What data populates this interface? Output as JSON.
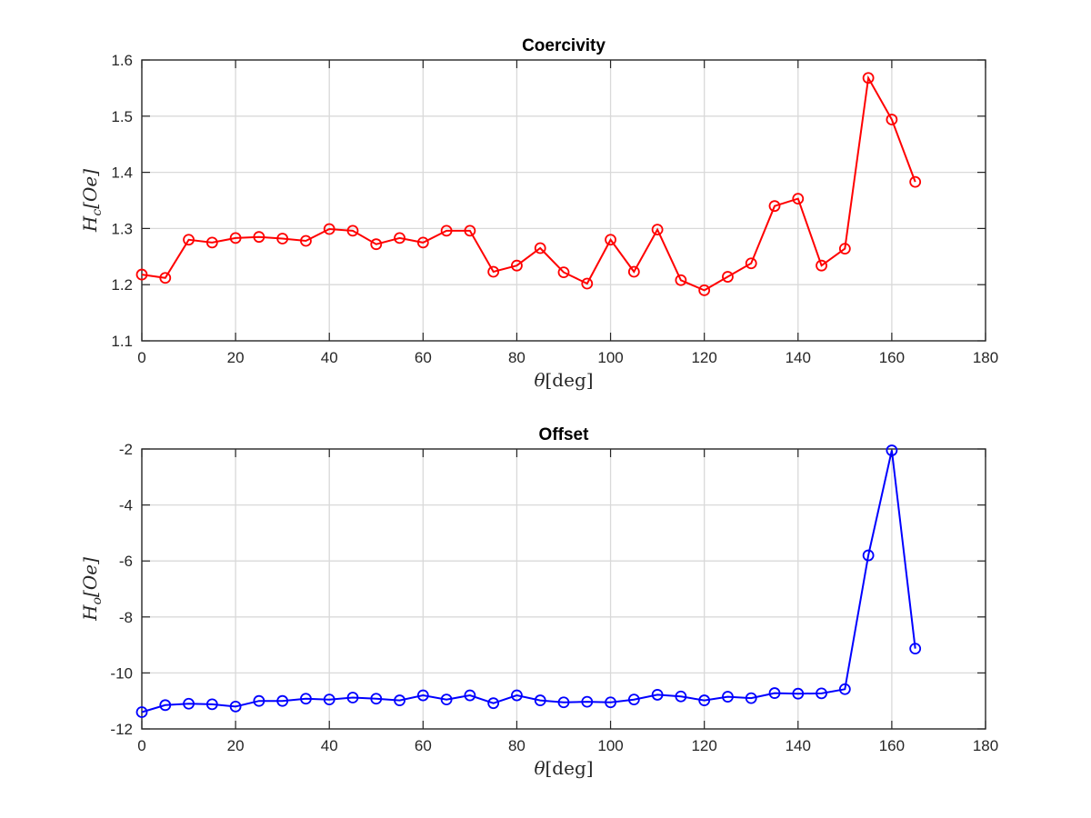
{
  "chart_data": [
    {
      "type": "line",
      "title": "Coercivity",
      "xlabel_symbol": "θ",
      "xlabel_unit": "[deg]",
      "ylabel_main": "H",
      "ylabel_sub": "c",
      "ylabel_unit": "[Oe]",
      "xlim": [
        0,
        180
      ],
      "ylim": [
        1.1,
        1.6
      ],
      "xticks": [
        0,
        20,
        40,
        60,
        80,
        100,
        120,
        140,
        160,
        180
      ],
      "yticks": [
        1.1,
        1.2,
        1.3,
        1.4,
        1.5,
        1.6
      ],
      "ytick_labels": [
        "1.1",
        "1.2",
        "1.3",
        "1.4",
        "1.5",
        "1.6"
      ],
      "grid": true,
      "series": [
        {
          "color": "#ff0000",
          "marker": "circle",
          "x": [
            0,
            5,
            10,
            15,
            20,
            25,
            30,
            35,
            40,
            45,
            50,
            55,
            60,
            65,
            70,
            75,
            80,
            85,
            90,
            95,
            100,
            105,
            110,
            115,
            120,
            125,
            130,
            135,
            140,
            145,
            150,
            155,
            160,
            165
          ],
          "y": [
            1.218,
            1.212,
            1.28,
            1.275,
            1.283,
            1.285,
            1.282,
            1.278,
            1.299,
            1.296,
            1.272,
            1.283,
            1.275,
            1.296,
            1.296,
            1.223,
            1.234,
            1.265,
            1.222,
            1.202,
            1.28,
            1.223,
            1.298,
            1.208,
            1.19,
            1.214,
            1.238,
            1.34,
            1.353,
            1.234,
            1.264,
            1.568,
            1.494,
            1.383
          ]
        }
      ]
    },
    {
      "type": "line",
      "title": "Offset",
      "xlabel_symbol": "θ",
      "xlabel_unit": "[deg]",
      "ylabel_main": "H",
      "ylabel_sub": "o",
      "ylabel_unit": "[Oe]",
      "xlim": [
        0,
        180
      ],
      "ylim": [
        -12,
        -2
      ],
      "xticks": [
        0,
        20,
        40,
        60,
        80,
        100,
        120,
        140,
        160,
        180
      ],
      "yticks": [
        -12,
        -10,
        -8,
        -6,
        -4,
        -2
      ],
      "ytick_labels": [
        "-12",
        "-10",
        "-8",
        "-6",
        "-4",
        "-2"
      ],
      "grid": true,
      "series": [
        {
          "color": "#0000ff",
          "marker": "circle",
          "x": [
            0,
            5,
            10,
            15,
            20,
            25,
            30,
            35,
            40,
            45,
            50,
            55,
            60,
            65,
            70,
            75,
            80,
            85,
            90,
            95,
            100,
            105,
            110,
            115,
            120,
            125,
            130,
            135,
            140,
            145,
            150,
            155,
            160,
            165
          ],
          "y": [
            -11.4,
            -11.15,
            -11.1,
            -11.12,
            -11.2,
            -11.0,
            -11.0,
            -10.92,
            -10.95,
            -10.88,
            -10.92,
            -10.98,
            -10.8,
            -10.95,
            -10.8,
            -11.08,
            -10.8,
            -10.98,
            -11.05,
            -11.03,
            -11.05,
            -10.95,
            -10.78,
            -10.84,
            -10.98,
            -10.85,
            -10.9,
            -10.72,
            -10.74,
            -10.73,
            -10.58,
            -5.8,
            -2.05,
            -9.13
          ]
        }
      ]
    }
  ]
}
